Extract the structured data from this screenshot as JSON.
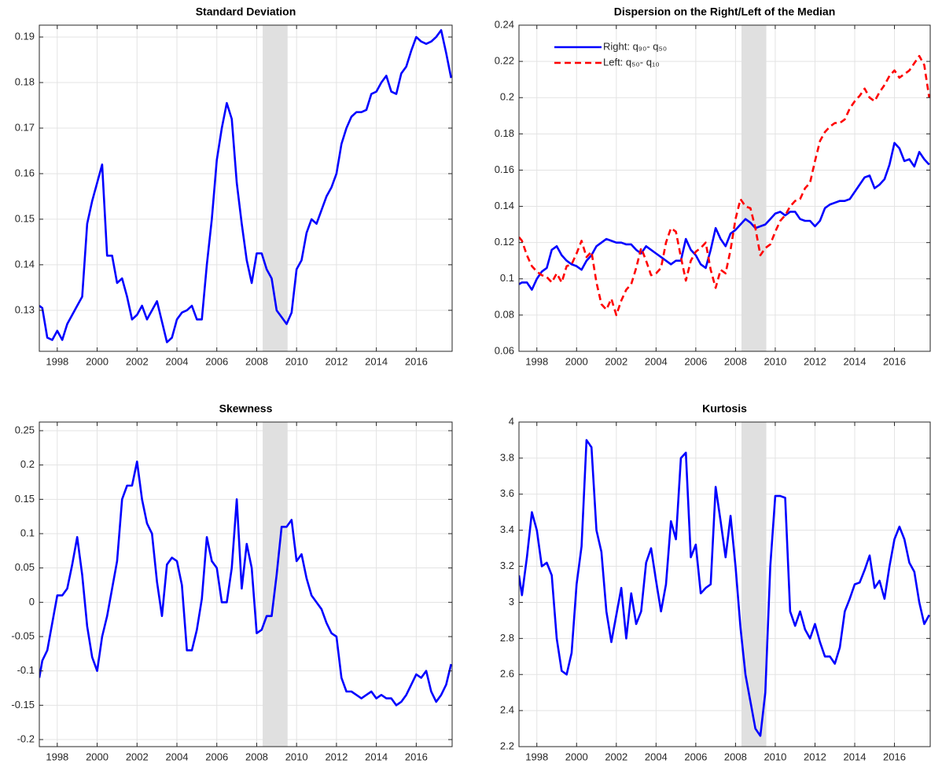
{
  "chart_data": [
    {
      "type": "line",
      "title": "Standard Deviation",
      "color": "#0000ff",
      "shaded_region": [
        2008.3,
        2009.55
      ],
      "shade_color": "#e0e0e0",
      "x": [
        1997.1,
        1997.25,
        1997.5,
        1997.75,
        1998,
        1998.25,
        1998.5,
        1998.75,
        1999,
        1999.25,
        1999.5,
        1999.75,
        2000,
        2000.25,
        2000.5,
        2000.75,
        2001,
        2001.25,
        2001.5,
        2001.75,
        2002,
        2002.25,
        2002.5,
        2002.75,
        2003,
        2003.25,
        2003.5,
        2003.75,
        2004,
        2004.25,
        2004.5,
        2004.75,
        2005,
        2005.25,
        2005.5,
        2005.75,
        2006,
        2006.25,
        2006.5,
        2006.75,
        2007,
        2007.25,
        2007.5,
        2007.75,
        2008,
        2008.25,
        2008.5,
        2008.75,
        2009,
        2009.25,
        2009.5,
        2009.75,
        2010,
        2010.25,
        2010.5,
        2010.75,
        2011,
        2011.25,
        2011.5,
        2011.75,
        2012,
        2012.25,
        2012.5,
        2012.75,
        2013,
        2013.25,
        2013.5,
        2013.75,
        2014,
        2014.25,
        2014.5,
        2014.75,
        2015,
        2015.25,
        2015.5,
        2015.75,
        2016,
        2016.25,
        2016.5,
        2016.75,
        2017,
        2017.25,
        2017.5,
        2017.75
      ],
      "values": [
        0.131,
        0.1305,
        0.124,
        0.1235,
        0.1255,
        0.1235,
        0.127,
        0.129,
        0.131,
        0.133,
        0.149,
        0.154,
        0.158,
        0.162,
        0.142,
        0.142,
        0.136,
        0.137,
        0.133,
        0.128,
        0.129,
        0.131,
        0.128,
        0.13,
        0.132,
        0.1275,
        0.123,
        0.124,
        0.128,
        0.1295,
        0.13,
        0.131,
        0.128,
        0.128,
        0.14,
        0.15,
        0.163,
        0.17,
        0.1755,
        0.172,
        0.158,
        0.149,
        0.141,
        0.136,
        0.1425,
        0.1425,
        0.139,
        0.137,
        0.13,
        0.1285,
        0.127,
        0.1295,
        0.139,
        0.141,
        0.147,
        0.15,
        0.149,
        0.152,
        0.155,
        0.157,
        0.16,
        0.1665,
        0.17,
        0.1725,
        0.1735,
        0.1735,
        0.174,
        0.1775,
        0.178,
        0.18,
        0.1815,
        0.178,
        0.1775,
        0.182,
        0.1835,
        0.187,
        0.19,
        0.189,
        0.1885,
        0.189,
        0.19,
        0.1915,
        0.1865,
        0.181
      ],
      "xlim": [
        1997.1,
        2017.8
      ],
      "xticks": [
        1998,
        2000,
        2002,
        2004,
        2006,
        2008,
        2010,
        2012,
        2014,
        2016
      ],
      "ylim": [
        0.121,
        0.1926
      ],
      "yticks": [
        0.13,
        0.14,
        0.15,
        0.16,
        0.17,
        0.18,
        0.19
      ],
      "grid": true
    },
    {
      "type": "line",
      "title": "Dispersion on the Right/Left of the Median",
      "shaded_region": [
        2008.3,
        2009.55
      ],
      "shade_color": "#e0e0e0",
      "legend": "upper left",
      "x": [
        1997.1,
        1997.25,
        1997.5,
        1997.75,
        1998,
        1998.25,
        1998.5,
        1998.75,
        1999,
        1999.25,
        1999.5,
        1999.75,
        2000,
        2000.25,
        2000.5,
        2000.75,
        2001,
        2001.25,
        2001.5,
        2001.75,
        2002,
        2002.25,
        2002.5,
        2002.75,
        2003,
        2003.25,
        2003.5,
        2003.75,
        2004,
        2004.25,
        2004.5,
        2004.75,
        2005,
        2005.25,
        2005.5,
        2005.75,
        2006,
        2006.25,
        2006.5,
        2006.75,
        2007,
        2007.25,
        2007.5,
        2007.75,
        2008,
        2008.25,
        2008.5,
        2008.75,
        2009,
        2009.25,
        2009.5,
        2009.75,
        2010,
        2010.25,
        2010.5,
        2010.75,
        2011,
        2011.25,
        2011.5,
        2011.75,
        2012,
        2012.25,
        2012.5,
        2012.75,
        2013,
        2013.25,
        2013.5,
        2013.75,
        2014,
        2014.25,
        2014.5,
        2014.75,
        2015,
        2015.25,
        2015.5,
        2015.75,
        2016,
        2016.25,
        2016.5,
        2016.75,
        2017,
        2017.25,
        2017.5,
        2017.75
      ],
      "series": [
        {
          "name": "Right: q₉₀- q₅₀",
          "color": "#0000ff",
          "dash": "solid",
          "values": [
            0.097,
            0.098,
            0.098,
            0.094,
            0.1,
            0.104,
            0.106,
            0.116,
            0.118,
            0.113,
            0.11,
            0.108,
            0.107,
            0.105,
            0.11,
            0.113,
            0.118,
            0.12,
            0.122,
            0.121,
            0.12,
            0.12,
            0.119,
            0.119,
            0.116,
            0.114,
            0.118,
            0.116,
            0.114,
            0.112,
            0.11,
            0.108,
            0.11,
            0.11,
            0.122,
            0.116,
            0.113,
            0.108,
            0.106,
            0.116,
            0.128,
            0.122,
            0.118,
            0.125,
            0.127,
            0.13,
            0.133,
            0.131,
            0.128,
            0.129,
            0.13,
            0.133,
            0.136,
            0.137,
            0.135,
            0.137,
            0.137,
            0.133,
            0.132,
            0.132,
            0.129,
            0.132,
            0.139,
            0.141,
            0.142,
            0.143,
            0.143,
            0.144,
            0.148,
            0.152,
            0.156,
            0.157,
            0.15,
            0.152,
            0.155,
            0.163,
            0.175,
            0.172,
            0.165,
            0.166,
            0.162,
            0.17,
            0.166,
            0.163
          ]
        },
        {
          "name": "Left: q₅₀- q₁₀",
          "color": "#ff0000",
          "dash": "dashed",
          "values": [
            0.123,
            0.121,
            0.113,
            0.107,
            0.104,
            0.102,
            0.101,
            0.098,
            0.103,
            0.098,
            0.107,
            0.108,
            0.114,
            0.121,
            0.112,
            0.115,
            0.098,
            0.086,
            0.083,
            0.089,
            0.08,
            0.088,
            0.094,
            0.097,
            0.106,
            0.117,
            0.11,
            0.102,
            0.103,
            0.106,
            0.12,
            0.128,
            0.126,
            0.112,
            0.099,
            0.11,
            0.115,
            0.117,
            0.12,
            0.105,
            0.095,
            0.105,
            0.103,
            0.116,
            0.133,
            0.144,
            0.14,
            0.139,
            0.128,
            0.113,
            0.117,
            0.119,
            0.126,
            0.132,
            0.135,
            0.14,
            0.143,
            0.144,
            0.15,
            0.153,
            0.165,
            0.176,
            0.181,
            0.184,
            0.186,
            0.186,
            0.188,
            0.194,
            0.198,
            0.201,
            0.205,
            0.2,
            0.198,
            0.203,
            0.207,
            0.212,
            0.215,
            0.211,
            0.213,
            0.215,
            0.219,
            0.223,
            0.218,
            0.2
          ]
        }
      ],
      "xlim": [
        1997.1,
        2017.8
      ],
      "xticks": [
        1998,
        2000,
        2002,
        2004,
        2006,
        2008,
        2010,
        2012,
        2014,
        2016
      ],
      "ylim": [
        0.06,
        0.24
      ],
      "yticks": [
        0.06,
        0.08,
        0.1,
        0.12,
        0.14,
        0.16,
        0.18,
        0.2,
        0.22,
        0.24
      ],
      "grid": true
    },
    {
      "type": "line",
      "title": "Skewness",
      "color": "#0000ff",
      "shaded_region": [
        2008.3,
        2009.55
      ],
      "shade_color": "#e0e0e0",
      "x": [
        1997.1,
        1997.25,
        1997.5,
        1997.75,
        1998,
        1998.25,
        1998.5,
        1998.75,
        1999,
        1999.25,
        1999.5,
        1999.75,
        2000,
        2000.25,
        2000.5,
        2000.75,
        2001,
        2001.25,
        2001.5,
        2001.75,
        2002,
        2002.25,
        2002.5,
        2002.75,
        2003,
        2003.25,
        2003.5,
        2003.75,
        2004,
        2004.25,
        2004.5,
        2004.75,
        2005,
        2005.25,
        2005.5,
        2005.75,
        2006,
        2006.25,
        2006.5,
        2006.75,
        2007,
        2007.25,
        2007.5,
        2007.75,
        2008,
        2008.25,
        2008.5,
        2008.75,
        2009,
        2009.25,
        2009.5,
        2009.75,
        2010,
        2010.25,
        2010.5,
        2010.75,
        2011,
        2011.25,
        2011.5,
        2011.75,
        2012,
        2012.25,
        2012.5,
        2012.75,
        2013,
        2013.25,
        2013.5,
        2013.75,
        2014,
        2014.25,
        2014.5,
        2014.75,
        2015,
        2015.25,
        2015.5,
        2015.75,
        2016,
        2016.25,
        2016.5,
        2016.75,
        2017,
        2017.25,
        2017.5,
        2017.75
      ],
      "values": [
        -0.11,
        -0.085,
        -0.07,
        -0.03,
        0.01,
        0.01,
        0.02,
        0.055,
        0.095,
        0.04,
        -0.035,
        -0.08,
        -0.1,
        -0.05,
        -0.02,
        0.02,
        0.06,
        0.15,
        0.17,
        0.17,
        0.205,
        0.15,
        0.115,
        0.1,
        0.03,
        -0.02,
        0.055,
        0.065,
        0.06,
        0.025,
        -0.07,
        -0.07,
        -0.04,
        0.005,
        0.095,
        0.06,
        0.05,
        0.0,
        0.0,
        0.05,
        0.15,
        0.02,
        0.085,
        0.05,
        -0.045,
        -0.04,
        -0.02,
        -0.02,
        0.04,
        0.11,
        0.11,
        0.12,
        0.06,
        0.07,
        0.035,
        0.01,
        0.0,
        -0.01,
        -0.03,
        -0.045,
        -0.05,
        -0.11,
        -0.13,
        -0.13,
        -0.135,
        -0.14,
        -0.135,
        -0.13,
        -0.14,
        -0.135,
        -0.14,
        -0.14,
        -0.15,
        -0.145,
        -0.135,
        -0.12,
        -0.105,
        -0.11,
        -0.1,
        -0.13,
        -0.145,
        -0.135,
        -0.12,
        -0.09
      ],
      "xlim": [
        1997.1,
        2017.8
      ],
      "xticks": [
        1998,
        2000,
        2002,
        2004,
        2006,
        2008,
        2010,
        2012,
        2014,
        2016
      ],
      "ylim": [
        -0.2103,
        0.2626
      ],
      "yticks": [
        -0.2,
        -0.15,
        -0.1,
        -0.05,
        0,
        0.05,
        0.1,
        0.15,
        0.2,
        0.25
      ],
      "grid": true
    },
    {
      "type": "line",
      "title": "Kurtosis",
      "color": "#0000ff",
      "shaded_region": [
        2008.3,
        2009.55
      ],
      "shade_color": "#e0e0e0",
      "x": [
        1997.1,
        1997.25,
        1997.5,
        1997.75,
        1998,
        1998.25,
        1998.5,
        1998.75,
        1999,
        1999.25,
        1999.5,
        1999.75,
        2000,
        2000.25,
        2000.5,
        2000.75,
        2001,
        2001.25,
        2001.5,
        2001.75,
        2002,
        2002.25,
        2002.5,
        2002.75,
        2003,
        2003.25,
        2003.5,
        2003.75,
        2004,
        2004.25,
        2004.5,
        2004.75,
        2005,
        2005.25,
        2005.5,
        2005.75,
        2006,
        2006.25,
        2006.5,
        2006.75,
        2007,
        2007.25,
        2007.5,
        2007.75,
        2008,
        2008.25,
        2008.5,
        2008.75,
        2009,
        2009.25,
        2009.5,
        2009.75,
        2010,
        2010.25,
        2010.5,
        2010.75,
        2011,
        2011.25,
        2011.5,
        2011.75,
        2012,
        2012.25,
        2012.5,
        2012.75,
        2013,
        2013.25,
        2013.5,
        2013.75,
        2014,
        2014.25,
        2014.5,
        2014.75,
        2015,
        2015.25,
        2015.5,
        2015.75,
        2016,
        2016.25,
        2016.5,
        2016.75,
        2017,
        2017.25,
        2017.5,
        2017.75
      ],
      "values": [
        3.15,
        3.04,
        3.25,
        3.5,
        3.4,
        3.2,
        3.22,
        3.15,
        2.8,
        2.62,
        2.6,
        2.72,
        3.1,
        3.31,
        3.9,
        3.86,
        3.4,
        3.28,
        2.95,
        2.78,
        2.93,
        3.08,
        2.8,
        3.05,
        2.88,
        2.95,
        3.22,
        3.3,
        3.12,
        2.95,
        3.1,
        3.45,
        3.35,
        3.8,
        3.83,
        3.25,
        3.32,
        3.05,
        3.08,
        3.1,
        3.64,
        3.45,
        3.25,
        3.48,
        3.2,
        2.86,
        2.6,
        2.45,
        2.3,
        2.26,
        2.5,
        3.2,
        3.59,
        3.59,
        3.58,
        2.95,
        2.87,
        2.95,
        2.85,
        2.8,
        2.88,
        2.78,
        2.7,
        2.7,
        2.66,
        2.75,
        2.95,
        3.02,
        3.1,
        3.11,
        3.18,
        3.26,
        3.08,
        3.12,
        3.02,
        3.2,
        3.35,
        3.42,
        3.35,
        3.22,
        3.17,
        3.0,
        2.88,
        2.93
      ],
      "xlim": [
        1997.1,
        2017.8
      ],
      "xticks": [
        1998,
        2000,
        2002,
        2004,
        2006,
        2008,
        2010,
        2012,
        2014,
        2016
      ],
      "ylim": [
        2.2,
        4
      ],
      "yticks": [
        2.2,
        2.4,
        2.6,
        2.8,
        3,
        3.2,
        3.4,
        3.6,
        3.8,
        4
      ],
      "grid": true
    }
  ]
}
